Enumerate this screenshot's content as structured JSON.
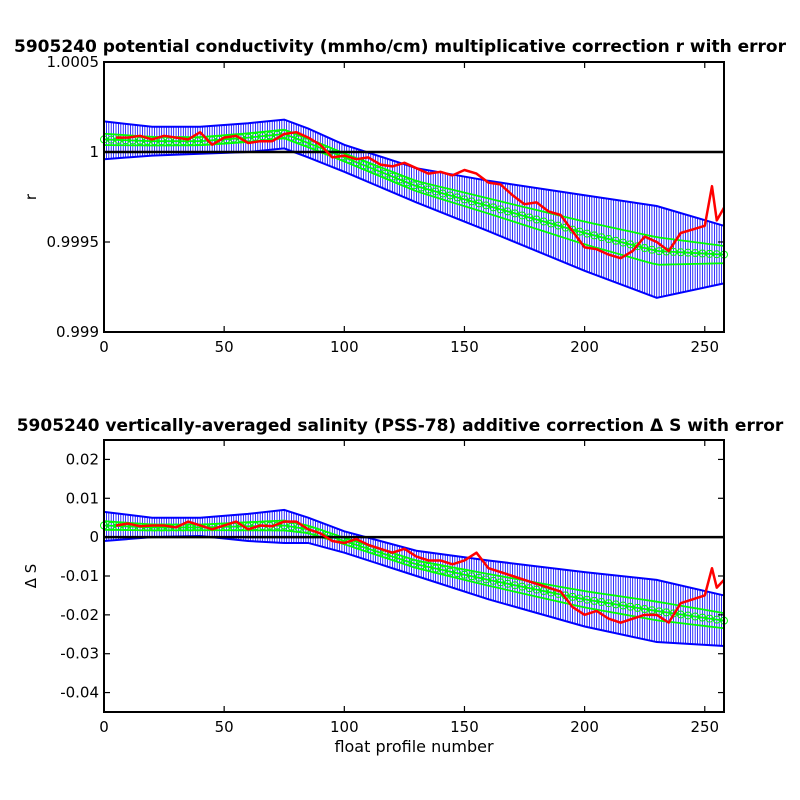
{
  "chart_data": [
    {
      "type": "line",
      "title": "5905240 potential conductivity (mmho/cm) multiplicative correction r with error",
      "xlabel": "",
      "ylabel": "r",
      "xlim": [
        0,
        258
      ],
      "ylim": [
        0.999,
        1.0005
      ],
      "x_ticks": [
        0,
        50,
        100,
        150,
        200,
        250
      ],
      "x_tick_labels": [
        "0",
        "50",
        "100",
        "150",
        "200",
        "250"
      ],
      "y_ticks": [
        0.999,
        0.9995,
        1,
        1.0005
      ],
      "y_tick_labels": [
        "0.999",
        "0.9995",
        "1",
        "1.0005"
      ],
      "grid": false,
      "reference_line": 1,
      "colors": {
        "reference": "#000000",
        "error_band": "#0000ff",
        "fit": "#00ff00",
        "measured": "#ff0000"
      },
      "series": [
        {
          "kind": "error_band",
          "x": [
            0,
            20,
            40,
            60,
            75,
            85,
            100,
            130,
            160,
            200,
            230,
            258
          ],
          "y_upper": [
            1.00017,
            1.00014,
            1.00014,
            1.00016,
            1.00018,
            1.00013,
            1.00004,
            0.99991,
            0.99984,
            0.99976,
            0.9997,
            0.99959
          ],
          "y_lower": [
            0.99996,
            0.99998,
            0.99999,
            1.0,
            1.00002,
            0.99997,
            0.99989,
            0.99972,
            0.99956,
            0.99934,
            0.99919,
            0.99927
          ]
        },
        {
          "kind": "fit",
          "x": [
            0,
            20,
            40,
            60,
            75,
            85,
            100,
            130,
            160,
            200,
            230,
            258
          ],
          "y": [
            1.00007,
            1.00006,
            1.00006,
            1.00008,
            1.0001,
            1.00005,
            0.99997,
            0.99981,
            0.9997,
            0.99955,
            0.99945,
            0.99943
          ]
        },
        {
          "kind": "measured",
          "x": [
            5,
            10,
            15,
            20,
            25,
            30,
            35,
            40,
            45,
            50,
            55,
            60,
            65,
            70,
            75,
            80,
            85,
            90,
            95,
            100,
            105,
            110,
            115,
            120,
            125,
            130,
            135,
            140,
            145,
            150,
            155,
            160,
            165,
            170,
            175,
            180,
            185,
            190,
            195,
            200,
            205,
            210,
            215,
            220,
            225,
            230,
            235,
            240,
            245,
            250,
            253,
            255,
            258
          ],
          "y": [
            1.00008,
            1.00008,
            1.00009,
            1.00007,
            1.00009,
            1.00008,
            1.00007,
            1.00011,
            1.00004,
            1.00008,
            1.00009,
            1.00005,
            1.00006,
            1.00006,
            1.0001,
            1.00011,
            1.00008,
            1.00004,
            0.99997,
            0.99998,
            0.99996,
            0.99997,
            0.99993,
            0.99992,
            0.99994,
            0.99991,
            0.99988,
            0.99989,
            0.99987,
            0.9999,
            0.99988,
            0.99983,
            0.99982,
            0.99976,
            0.99971,
            0.99972,
            0.99967,
            0.99965,
            0.99956,
            0.99947,
            0.99946,
            0.99943,
            0.99941,
            0.99945,
            0.99953,
            0.9995,
            0.99945,
            0.99955,
            0.99957,
            0.99959,
            0.99981,
            0.99962,
            0.99969
          ]
        }
      ]
    },
    {
      "type": "line",
      "title": "5905240 vertically-averaged salinity (PSS-78) additive correction Δ S with error",
      "xlabel": "float profile number",
      "ylabel": "Δ S",
      "xlim": [
        0,
        258
      ],
      "ylim": [
        -0.045,
        0.025
      ],
      "x_ticks": [
        0,
        50,
        100,
        150,
        200,
        250
      ],
      "x_tick_labels": [
        "0",
        "50",
        "100",
        "150",
        "200",
        "250"
      ],
      "y_ticks": [
        -0.04,
        -0.03,
        -0.02,
        -0.01,
        0,
        0.01,
        0.02
      ],
      "y_tick_labels": [
        "-0.04",
        "-0.03",
        "-0.02",
        "-0.01",
        "0",
        "0.01",
        "0.02"
      ],
      "grid": false,
      "reference_line": 0,
      "colors": {
        "reference": "#000000",
        "error_band": "#0000ff",
        "fit": "#00ff00",
        "measured": "#ff0000"
      },
      "series": [
        {
          "kind": "error_band",
          "x": [
            0,
            20,
            40,
            60,
            75,
            85,
            100,
            130,
            160,
            200,
            230,
            258
          ],
          "y_upper": [
            0.0065,
            0.005,
            0.005,
            0.006,
            0.007,
            0.005,
            0.0015,
            -0.0035,
            -0.006,
            -0.009,
            -0.011,
            -0.015
          ],
          "y_lower": [
            -0.001,
            0.0,
            0.0003,
            -0.001,
            -0.0015,
            -0.0015,
            -0.004,
            -0.01,
            -0.016,
            -0.023,
            -0.027,
            -0.028
          ]
        },
        {
          "kind": "fit",
          "x": [
            0,
            20,
            40,
            60,
            75,
            85,
            100,
            130,
            160,
            200,
            230,
            258
          ],
          "y": [
            0.003,
            0.0025,
            0.0025,
            0.0028,
            0.003,
            0.002,
            -0.001,
            -0.007,
            -0.011,
            -0.016,
            -0.019,
            -0.0215
          ]
        },
        {
          "kind": "measured",
          "x": [
            5,
            10,
            15,
            20,
            25,
            30,
            35,
            40,
            45,
            50,
            55,
            60,
            65,
            70,
            75,
            80,
            85,
            90,
            95,
            100,
            105,
            110,
            115,
            120,
            125,
            130,
            135,
            140,
            145,
            150,
            155,
            160,
            165,
            170,
            175,
            180,
            185,
            190,
            195,
            200,
            205,
            210,
            215,
            220,
            225,
            230,
            235,
            240,
            245,
            250,
            253,
            255,
            258
          ],
          "y": [
            0.003,
            0.0035,
            0.0028,
            0.003,
            0.003,
            0.0025,
            0.004,
            0.003,
            0.002,
            0.003,
            0.004,
            0.002,
            0.003,
            0.0028,
            0.004,
            0.004,
            0.002,
            0.001,
            -0.001,
            -0.0015,
            -0.0005,
            -0.002,
            -0.003,
            -0.004,
            -0.003,
            -0.005,
            -0.006,
            -0.006,
            -0.007,
            -0.006,
            -0.004,
            -0.008,
            -0.009,
            -0.01,
            -0.011,
            -0.012,
            -0.013,
            -0.014,
            -0.018,
            -0.02,
            -0.019,
            -0.021,
            -0.022,
            -0.021,
            -0.02,
            -0.02,
            -0.022,
            -0.017,
            -0.016,
            -0.015,
            -0.008,
            -0.013,
            -0.011
          ]
        }
      ]
    }
  ]
}
